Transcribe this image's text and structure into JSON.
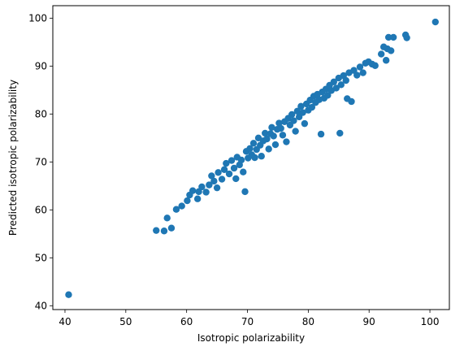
{
  "chart_data": {
    "type": "scatter",
    "title": "",
    "xlabel": "Isotropic polarizability",
    "ylabel": "Predicted isotropic polarizability",
    "xlim": [
      38.0,
      103.2
    ],
    "ylim": [
      39.2,
      102.6
    ],
    "xticks": [
      40,
      50,
      60,
      70,
      80,
      90,
      100
    ],
    "yticks": [
      40,
      50,
      60,
      70,
      80,
      90,
      100
    ],
    "grid": false,
    "legend": "none",
    "marker_color": "#1f77b4",
    "series": [
      {
        "points": [
          [
            40.6,
            42.3
          ],
          [
            55.0,
            55.7
          ],
          [
            56.3,
            55.6
          ],
          [
            57.5,
            56.2
          ],
          [
            56.8,
            58.3
          ],
          [
            58.3,
            60.1
          ],
          [
            59.2,
            60.8
          ],
          [
            60.1,
            61.9
          ],
          [
            60.5,
            63.1
          ],
          [
            61.0,
            64.0
          ],
          [
            61.8,
            62.3
          ],
          [
            62.0,
            63.8
          ],
          [
            62.5,
            64.8
          ],
          [
            63.2,
            63.7
          ],
          [
            63.7,
            65.2
          ],
          [
            64.1,
            67.1
          ],
          [
            64.5,
            66.0
          ],
          [
            65.0,
            64.6
          ],
          [
            65.2,
            67.8
          ],
          [
            65.8,
            66.4
          ],
          [
            66.2,
            68.4
          ],
          [
            66.5,
            69.7
          ],
          [
            67.0,
            67.5
          ],
          [
            67.4,
            70.3
          ],
          [
            67.8,
            68.7
          ],
          [
            68.1,
            66.5
          ],
          [
            68.3,
            71.0
          ],
          [
            68.7,
            69.4
          ],
          [
            69.0,
            70.4
          ],
          [
            69.3,
            67.9
          ],
          [
            69.6,
            63.8
          ],
          [
            69.8,
            72.2
          ],
          [
            70.1,
            70.8
          ],
          [
            70.4,
            72.8
          ],
          [
            70.7,
            71.5
          ],
          [
            71.0,
            73.9
          ],
          [
            71.2,
            70.9
          ],
          [
            71.5,
            72.6
          ],
          [
            71.8,
            75.0
          ],
          [
            72.1,
            73.5
          ],
          [
            72.3,
            71.2
          ],
          [
            72.6,
            74.4
          ],
          [
            72.9,
            76.0
          ],
          [
            73.2,
            74.8
          ],
          [
            73.5,
            72.7
          ],
          [
            73.8,
            75.9
          ],
          [
            74.0,
            77.2
          ],
          [
            74.3,
            75.4
          ],
          [
            74.6,
            73.6
          ],
          [
            74.9,
            76.8
          ],
          [
            75.2,
            78.1
          ],
          [
            75.5,
            77.0
          ],
          [
            75.8,
            75.6
          ],
          [
            76.1,
            78.4
          ],
          [
            76.4,
            74.2
          ],
          [
            76.7,
            79.1
          ],
          [
            77.0,
            77.7
          ],
          [
            77.3,
            79.9
          ],
          [
            77.6,
            78.6
          ],
          [
            77.9,
            76.4
          ],
          [
            78.2,
            80.6
          ],
          [
            78.5,
            79.4
          ],
          [
            78.8,
            81.6
          ],
          [
            79.1,
            80.3
          ],
          [
            79.4,
            78.0
          ],
          [
            79.7,
            82.1
          ],
          [
            80.0,
            80.8
          ],
          [
            80.3,
            82.9
          ],
          [
            80.6,
            81.4
          ],
          [
            80.9,
            83.7
          ],
          [
            81.2,
            82.4
          ],
          [
            81.5,
            84.1
          ],
          [
            81.8,
            83.0
          ],
          [
            82.1,
            75.8
          ],
          [
            82.3,
            84.6
          ],
          [
            82.6,
            83.3
          ],
          [
            82.9,
            85.2
          ],
          [
            83.2,
            83.9
          ],
          [
            83.5,
            86.0
          ],
          [
            83.8,
            84.9
          ],
          [
            84.2,
            86.7
          ],
          [
            84.6,
            85.4
          ],
          [
            85.0,
            87.5
          ],
          [
            85.2,
            76.0
          ],
          [
            85.4,
            86.1
          ],
          [
            85.8,
            88.0
          ],
          [
            86.2,
            87.0
          ],
          [
            86.4,
            83.2
          ],
          [
            86.7,
            88.6
          ],
          [
            87.1,
            82.6
          ],
          [
            87.5,
            89.1
          ],
          [
            88.0,
            88.1
          ],
          [
            88.5,
            89.8
          ],
          [
            89.0,
            88.6
          ],
          [
            89.4,
            90.6
          ],
          [
            89.9,
            90.9
          ],
          [
            90.5,
            90.4
          ],
          [
            91.0,
            90.1
          ],
          [
            92.0,
            92.5
          ],
          [
            92.4,
            94.0
          ],
          [
            92.8,
            91.2
          ],
          [
            93.0,
            93.6
          ],
          [
            93.2,
            96.0
          ],
          [
            93.6,
            93.2
          ],
          [
            94.0,
            96.0
          ],
          [
            96.0,
            96.5
          ],
          [
            96.2,
            95.9
          ],
          [
            100.9,
            99.2
          ]
        ]
      }
    ]
  }
}
